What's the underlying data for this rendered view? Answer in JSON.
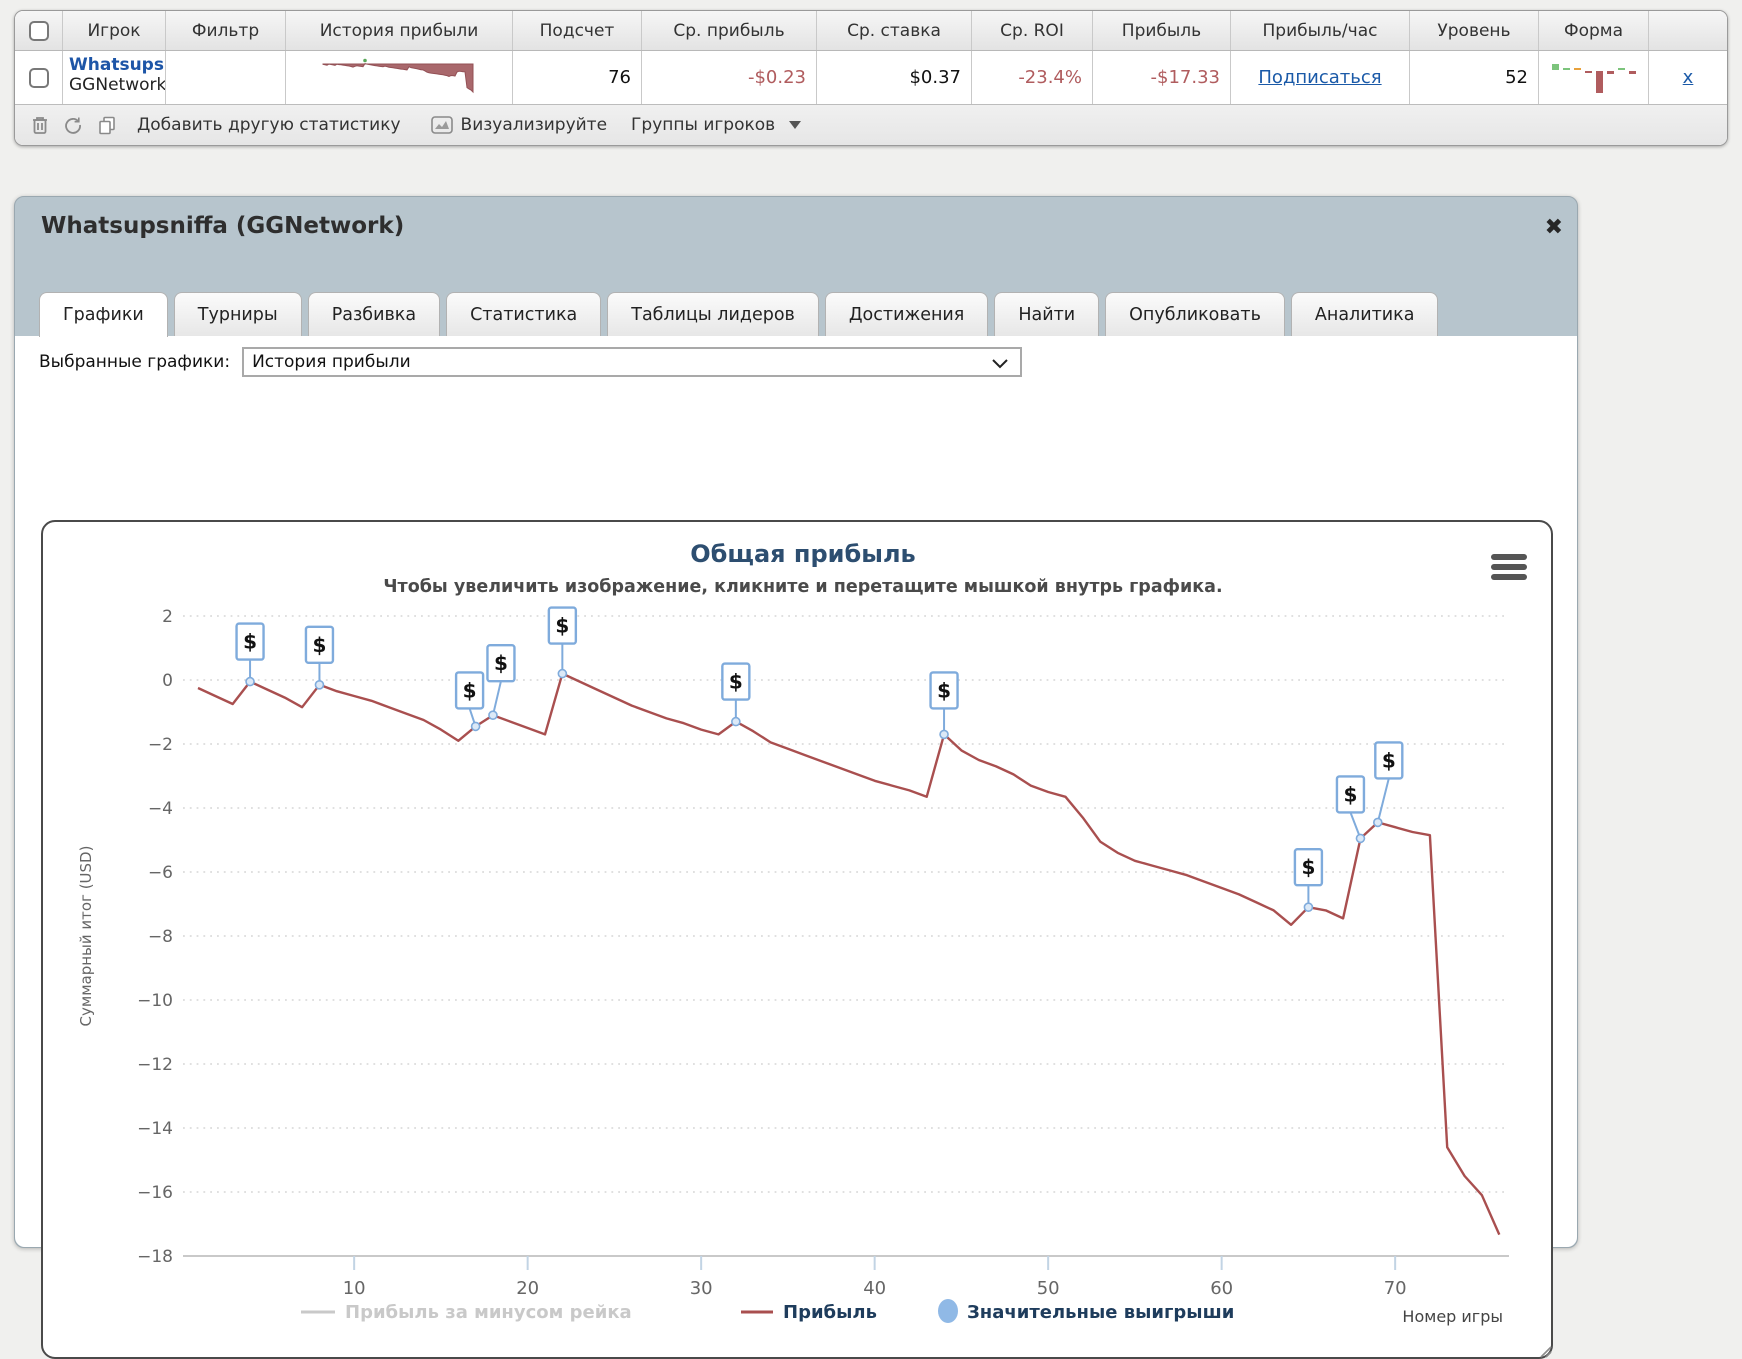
{
  "results_table": {
    "columns": [
      "Игрок",
      "Фильтр",
      "История прибыли",
      "Подсчет",
      "Ср. прибыль",
      "Ср. ставка",
      "Ср. ROI",
      "Прибыль",
      "Прибыль/час",
      "Уровень",
      "Форма"
    ],
    "row": {
      "player_name": "Whatsupsniffa",
      "player_network": "GGNetwork",
      "count": "76",
      "avg_profit": "-$0.23",
      "avg_stake": "$0.37",
      "avg_roi": "-23.4%",
      "profit": "-$17.33",
      "profit_per_hour_link": "Подписаться",
      "level": "52",
      "remove_link": "x"
    },
    "toolbar": {
      "add_stat_label": "Добавить другую статистику",
      "visualize_label": "Визуализируйте",
      "groups_label": "Группы игроков"
    }
  },
  "panel": {
    "title": "Whatsupsniffa (GGNetwork)",
    "close_glyph": "✖",
    "tabs": [
      {
        "label": "Графики",
        "active": true
      },
      {
        "label": "Турниры",
        "active": false
      },
      {
        "label": "Разбивка",
        "active": false
      },
      {
        "label": "Статистика",
        "active": false
      },
      {
        "label": "Таблицы лидеров",
        "active": false
      },
      {
        "label": "Достижения",
        "active": false
      },
      {
        "label": "Найти",
        "active": false
      },
      {
        "label": "Опубликовать",
        "active": false
      },
      {
        "label": "Аналитика",
        "active": false
      }
    ],
    "charts_select_label": "Выбранные графики:",
    "charts_select_value": "История прибыли"
  },
  "chart_data": {
    "type": "line",
    "title": "Общая прибыль",
    "subtitle": "Чтобы увеличить изображение, кликните и перетащите мышкой внутрь графика.",
    "xlabel": "Номер игры",
    "ylabel": "Суммарный итог (USD)",
    "x_range": [
      1,
      76
    ],
    "ylim": [
      -18,
      2
    ],
    "yticks": [
      2,
      0,
      -2,
      -4,
      -6,
      -8,
      -10,
      -12,
      -14,
      -16,
      -18
    ],
    "xticks": [
      10,
      20,
      30,
      40,
      50,
      60,
      70
    ],
    "grid": "dotted-horizontal",
    "legend_position": "bottom",
    "series": [
      {
        "name": "Прибыль за минусом рейка",
        "color": "#c9c9c9",
        "visible": false,
        "values": []
      },
      {
        "name": "Прибыль",
        "color": "#a94f4f",
        "visible": true,
        "values": [
          -0.25,
          -0.5,
          -0.75,
          -0.05,
          -0.3,
          -0.55,
          -0.85,
          -0.15,
          -0.35,
          -0.5,
          -0.65,
          -0.85,
          -1.05,
          -1.25,
          -1.55,
          -1.9,
          -1.45,
          -1.1,
          -1.3,
          -1.5,
          -1.7,
          0.2,
          -0.05,
          -0.3,
          -0.55,
          -0.8,
          -1.0,
          -1.2,
          -1.35,
          -1.55,
          -1.7,
          -1.3,
          -1.6,
          -1.95,
          -2.15,
          -2.35,
          -2.55,
          -2.75,
          -2.95,
          -3.15,
          -3.3,
          -3.45,
          -3.65,
          -1.7,
          -2.2,
          -2.5,
          -2.7,
          -2.95,
          -3.3,
          -3.5,
          -3.65,
          -4.3,
          -5.05,
          -5.4,
          -5.65,
          -5.8,
          -5.95,
          -6.1,
          -6.3,
          -6.5,
          -6.7,
          -6.95,
          -7.2,
          -7.65,
          -7.1,
          -7.2,
          -7.45,
          -4.95,
          -4.45,
          -4.6,
          -4.75,
          -4.85,
          -14.6,
          -15.5,
          -16.1,
          -17.33
        ]
      }
    ],
    "significant_wins": {
      "name": "Значительные выигрыши",
      "marker_color": "#90b9e6",
      "box_border_color": "#7fabdc",
      "dollar_glyph": "$",
      "games": [
        4,
        8,
        17,
        18,
        22,
        32,
        44,
        65,
        68,
        69
      ]
    },
    "final_value": -17.33,
    "colors": {
      "title": "#2d4e70",
      "subtitle": "#4a4a4a",
      "axis_text": "#666666",
      "legend_active_text": "#1e3c5c",
      "legend_disabled": "#c9c9c9",
      "gridline": "#d6d6d6",
      "axis_line": "#c9c9c9",
      "tick": "#c2d4e4"
    }
  },
  "sparklines": {
    "history": {
      "fill": "#a9686c",
      "stroke": "#935055",
      "win_dot_color": "#5aa85a"
    },
    "form_bars": [
      {
        "h": 6,
        "up": true,
        "color": "#7cc47c"
      },
      {
        "h": 2,
        "up": true,
        "color": "#7cc47c"
      },
      {
        "h": 2,
        "up": true,
        "color": "#e8a13c"
      },
      {
        "h": 2,
        "up": false,
        "color": "#b05c5e"
      },
      {
        "h": 22,
        "up": false,
        "color": "#b05c5e"
      },
      {
        "h": 3,
        "up": false,
        "color": "#b05c5e"
      },
      {
        "h": 2,
        "up": true,
        "color": "#7cc47c"
      },
      {
        "h": 3,
        "up": false,
        "color": "#b05c5e"
      }
    ]
  }
}
